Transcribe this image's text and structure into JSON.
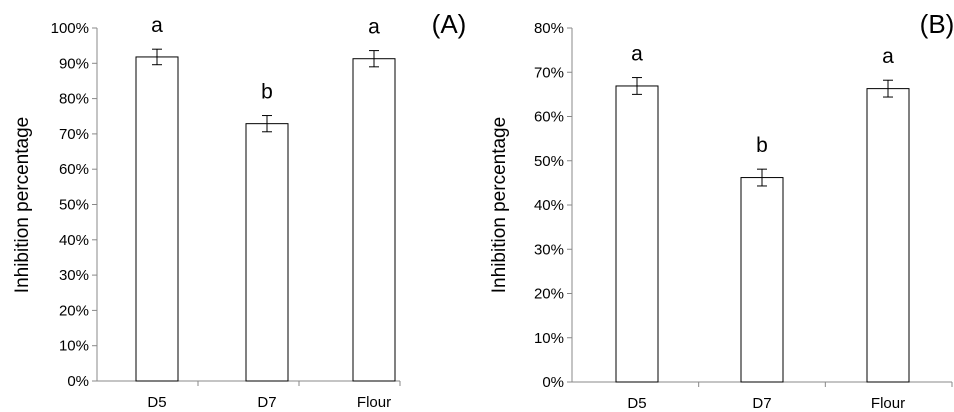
{
  "chart_data": [
    {
      "type": "bar",
      "panel_label": "(A)",
      "ylabel": "Inhibition percentage",
      "categories": [
        "D5",
        "D7",
        "Flour"
      ],
      "values": [
        91.8,
        72.9,
        91.3
      ],
      "errors": [
        2.2,
        2.3,
        2.3
      ],
      "annotations": [
        "a",
        "b",
        "a"
      ],
      "ylim": [
        0,
        100
      ],
      "yticks": [
        0,
        10,
        20,
        30,
        40,
        50,
        60,
        70,
        80,
        90,
        100
      ],
      "ytick_labels": [
        "0%",
        "10%",
        "20%",
        "30%",
        "40%",
        "50%",
        "60%",
        "70%",
        "80%",
        "90%",
        "100%"
      ],
      "grid": false,
      "bar_fill": "#ffffff",
      "bar_stroke": "#000000"
    },
    {
      "type": "bar",
      "panel_label": "(B)",
      "ylabel": "Inhibition percentage",
      "categories": [
        "D5",
        "D7",
        "Flour"
      ],
      "values": [
        66.9,
        46.2,
        66.3
      ],
      "errors": [
        1.9,
        1.9,
        1.9
      ],
      "annotations": [
        "a",
        "b",
        "a"
      ],
      "ylim": [
        0,
        80
      ],
      "yticks": [
        0,
        10,
        20,
        30,
        40,
        50,
        60,
        70,
        80
      ],
      "ytick_labels": [
        "0%",
        "10%",
        "20%",
        "30%",
        "40%",
        "50%",
        "60%",
        "70%",
        "80%"
      ],
      "grid": false,
      "bar_fill": "#ffffff",
      "bar_stroke": "#000000"
    }
  ]
}
